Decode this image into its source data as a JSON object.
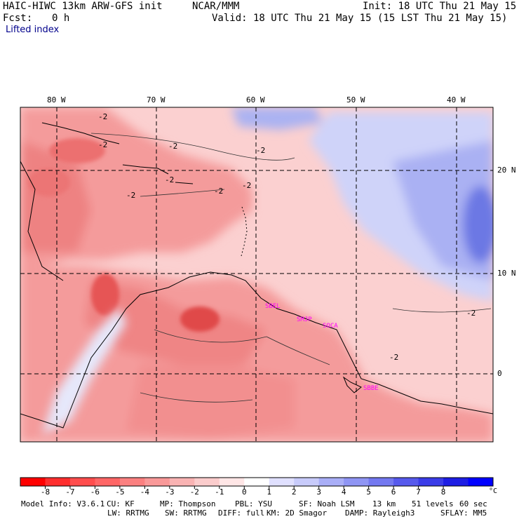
{
  "header": {
    "model_title": "HAIC-HIWC 13km ARW-GFS init",
    "org": "NCAR/MMM",
    "init": "Init: 18 UTC Thu 21 May 15",
    "fcst_label": "Fcst:",
    "fcst_value": "0 h",
    "valid": "Valid: 18 UTC Thu 21 May 15 (15 LST Thu 21 May 15)",
    "field_name": "Lifted index"
  },
  "map": {
    "lon_labels": [
      "80 W",
      "70 W",
      "60 W",
      "50 W",
      "40 W"
    ],
    "lat_labels": [
      "20 N",
      "10 N",
      "0"
    ],
    "contour_labels": [
      "-2",
      "-2",
      "-2",
      "-2",
      "-2",
      "-2",
      "-2",
      "-2",
      "-2",
      "-2"
    ],
    "station_labels": [
      "SBEL",
      "SMJP",
      "SOCA",
      "SBBE"
    ],
    "colors": {
      "strong_negative": "#e63636",
      "negative": "#f48c8c",
      "weak_negative": "#fbcaca",
      "neutral": "#ffffff",
      "weak_positive": "#d6d9fb",
      "positive": "#a9b1f4",
      "strong_positive": "#5e6de8",
      "station": "#ff00ff"
    }
  },
  "colorbar": {
    "unit": "°C",
    "ticks": [
      "-8",
      "-7",
      "-6",
      "-5",
      "-4",
      "-3",
      "-2",
      "-1",
      "0",
      "1",
      "2",
      "3",
      "4",
      "5",
      "6",
      "7",
      "8"
    ],
    "swatches": [
      "#ff0000",
      "#ff2e2e",
      "#ff4d4d",
      "#ff6666",
      "#fb8080",
      "#f99999",
      "#f9b3b3",
      "#fbcccc",
      "#ffe6e6",
      "#ffffff",
      "#e0e0ff",
      "#c8cbfb",
      "#a9aef7",
      "#8f95f4",
      "#7378f0",
      "#5659ec",
      "#3a3ce8",
      "#1d1de4",
      "#0000ff"
    ]
  },
  "footer": {
    "line1": [
      "Model Info: V3.6.1",
      "CU: KF",
      "MP: Thompson",
      "PBL: YSU",
      "SF: Noah LSM",
      "13 km",
      "51 levels",
      "60 sec"
    ],
    "line2": [
      "LW: RRTMG",
      "SW: RRTMG",
      "DIFF: full",
      "KM: 2D Smagor",
      "DAMP: Rayleigh3",
      "SFLAY: MM5"
    ]
  }
}
